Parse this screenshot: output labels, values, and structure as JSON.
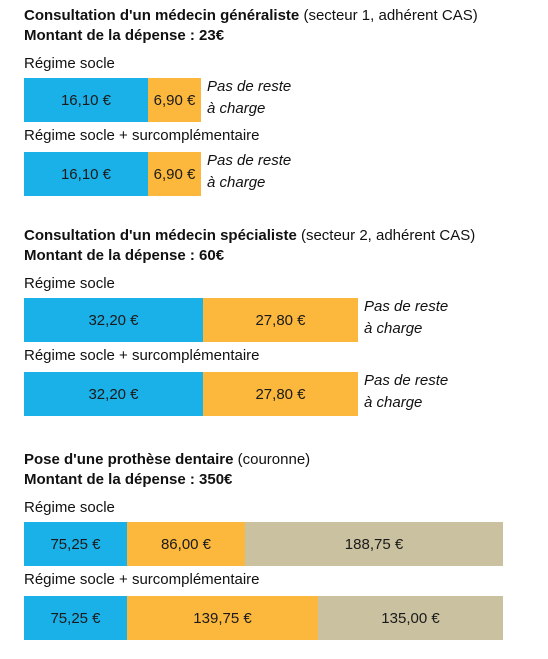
{
  "colors": {
    "regime_socle": "#1ab0e8",
    "surcomplementaire": "#fbb83d",
    "reste_a_charge": "#c9c1a0"
  },
  "sections": [
    {
      "title_bold": "Consultation d'un médecin généraliste",
      "title_rest": " (secteur 1, adhérent CAS)",
      "amount": "Montant de la dépense : 23€",
      "rows": [
        {
          "label": "Régime socle",
          "note_line1": "Pas de reste",
          "note_line2": "à charge",
          "segments": [
            {
              "text": "16,10 €",
              "value": 16.1,
              "kind": "regime_socle"
            },
            {
              "text": "6,90 €",
              "value": 6.9,
              "kind": "surcomplementaire"
            }
          ]
        },
        {
          "label": "Régime socle + surcomplémentaire",
          "note_line1": "Pas de reste",
          "note_line2": "à charge",
          "segments": [
            {
              "text": "16,10 €",
              "value": 16.1,
              "kind": "regime_socle"
            },
            {
              "text": "6,90 €",
              "value": 6.9,
              "kind": "surcomplementaire"
            }
          ]
        }
      ]
    },
    {
      "title_bold": "Consultation d'un médecin spécialiste",
      "title_rest": " (secteur 2, adhérent CAS)",
      "amount": "Montant de la dépense : 60€",
      "rows": [
        {
          "label": "Régime socle",
          "note_line1": "Pas de reste",
          "note_line2": "à charge",
          "segments": [
            {
              "text": "32,20 €",
              "value": 32.2,
              "kind": "regime_socle"
            },
            {
              "text": "27,80 €",
              "value": 27.8,
              "kind": "surcomplementaire"
            }
          ]
        },
        {
          "label": "Régime socle + surcomplémentaire",
          "note_line1": "Pas de reste",
          "note_line2": "à charge",
          "segments": [
            {
              "text": "32,20 €",
              "value": 32.2,
              "kind": "regime_socle"
            },
            {
              "text": "27,80 €",
              "value": 27.8,
              "kind": "surcomplementaire"
            }
          ]
        }
      ]
    },
    {
      "title_bold": "Pose d'une prothèse dentaire",
      "title_rest": " (couronne)",
      "amount": "Montant de la dépense : 350€",
      "rows": [
        {
          "label": "Régime socle",
          "note_line1": "",
          "note_line2": "",
          "segments": [
            {
              "text": "75,25 €",
              "value": 75.25,
              "kind": "regime_socle"
            },
            {
              "text": "86,00 €",
              "value": 86.0,
              "kind": "surcomplementaire"
            },
            {
              "text": "188,75 €",
              "value": 188.75,
              "kind": "reste_a_charge"
            }
          ]
        },
        {
          "label": "Régime socle + surcomplémentaire",
          "note_line1": "",
          "note_line2": "",
          "segments": [
            {
              "text": "75,25 €",
              "value": 75.25,
              "kind": "regime_socle"
            },
            {
              "text": "139,75 €",
              "value": 139.75,
              "kind": "surcomplementaire"
            },
            {
              "text": "135,00 €",
              "value": 135.0,
              "kind": "reste_a_charge"
            }
          ]
        }
      ]
    }
  ],
  "chart_data": {
    "type": "bar",
    "orientation": "horizontal-stacked",
    "groups": [
      {
        "title": "Consultation d'un médecin généraliste (secteur 1, adhérent CAS)",
        "total": 23,
        "categories": [
          "Régime socle",
          "Régime socle + surcomplémentaire"
        ],
        "values": [
          [
            16.1,
            6.9
          ],
          [
            16.1,
            6.9
          ]
        ]
      },
      {
        "title": "Consultation d'un médecin spécialiste (secteur 2, adhérent CAS)",
        "total": 60,
        "categories": [
          "Régime socle",
          "Régime socle + surcomplémentaire"
        ],
        "values": [
          [
            32.2,
            27.8
          ],
          [
            32.2,
            27.8
          ]
        ]
      },
      {
        "title": "Pose d'une prothèse dentaire (couronne)",
        "total": 350,
        "categories": [
          "Régime socle",
          "Régime socle + surcomplémentaire"
        ],
        "values": [
          [
            75.25,
            86.0,
            188.75
          ],
          [
            75.25,
            139.75,
            135.0
          ]
        ]
      }
    ]
  }
}
